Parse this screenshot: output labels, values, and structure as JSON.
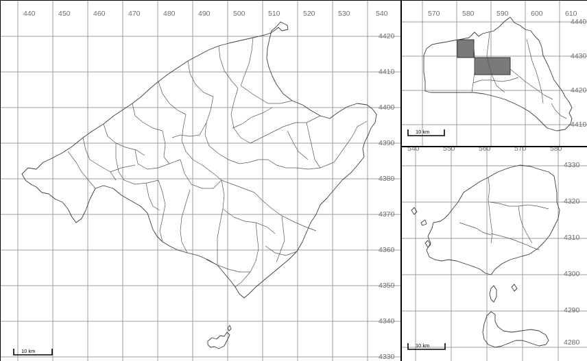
{
  "main_map": {
    "x_ticks": [
      "440",
      "450",
      "460",
      "470",
      "480",
      "490",
      "500",
      "510",
      "520",
      "530",
      "540"
    ],
    "y_ticks": [
      "4420",
      "4410",
      "4400",
      "4390",
      "4380",
      "4370",
      "4360",
      "4350",
      "4340",
      "4330"
    ],
    "scale_label": "10 km"
  },
  "minorca_map": {
    "x_ticks": [
      "570",
      "580",
      "590",
      "600",
      "610"
    ],
    "y_ticks": [
      "4440",
      "4430",
      "4420",
      "4410"
    ],
    "scale_label": "10 km"
  },
  "ibiza_map": {
    "x_ticks": [
      "540",
      "550",
      "560",
      "570",
      "580"
    ],
    "y_ticks": [
      "4330",
      "4320",
      "4310",
      "4300",
      "4290",
      "4280"
    ],
    "scale_label": "10 km"
  },
  "colors": {
    "grid": "#9c9c9c",
    "coast": "#3c3c3c",
    "highlight": "#7a7a7a"
  }
}
